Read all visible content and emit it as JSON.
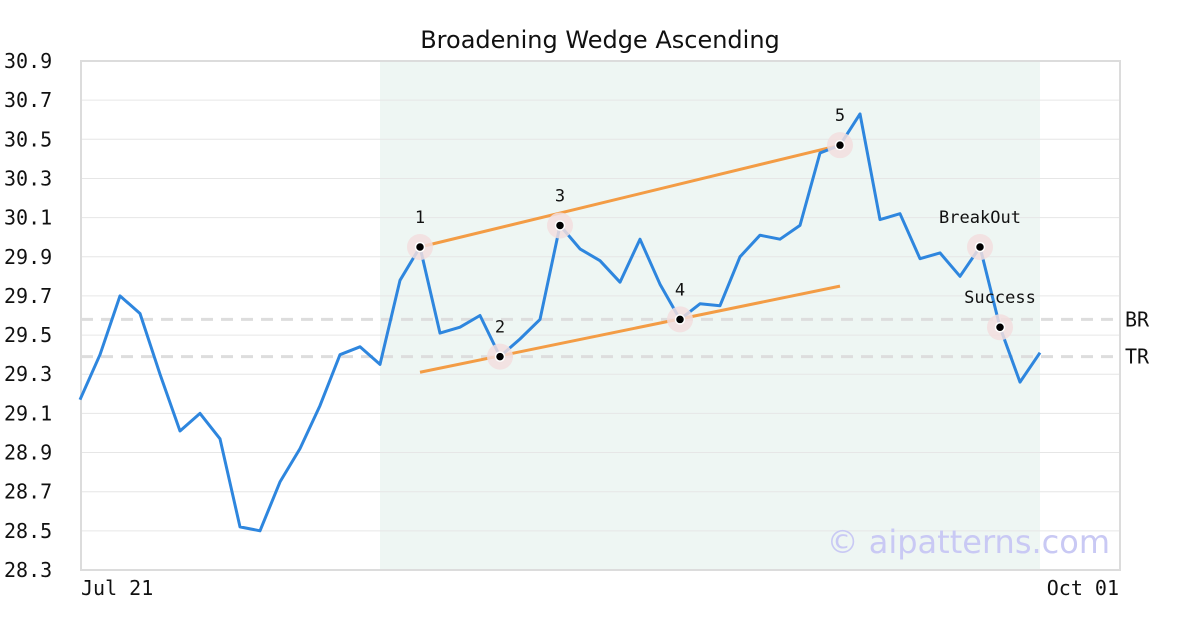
{
  "chart_data": {
    "type": "line",
    "title": "Broadening Wedge Ascending",
    "xlabel": "",
    "ylabel": "",
    "ylim": [
      28.3,
      30.9
    ],
    "yticks": [
      "30.9",
      "30.7",
      "30.5",
      "30.3",
      "30.1",
      "29.9",
      "29.7",
      "29.5",
      "29.3",
      "29.1",
      "28.9",
      "28.7",
      "28.5",
      "28.3"
    ],
    "xtick_labels": [
      "Jul 21",
      "Oct 01"
    ],
    "grid": "horizontal",
    "series": [
      {
        "values": [
          29.17,
          29.4,
          29.7,
          29.61,
          29.3,
          29.01,
          29.1,
          28.97,
          28.52,
          28.5,
          28.75,
          28.92,
          29.14,
          29.4,
          29.44,
          29.35,
          29.78,
          29.95,
          29.51,
          29.54,
          29.6,
          29.39,
          29.48,
          29.58,
          30.06,
          29.94,
          29.88,
          29.77,
          29.99,
          29.76,
          29.58,
          29.66,
          29.65,
          29.9,
          30.01,
          29.99,
          30.06,
          30.43,
          30.47,
          30.63,
          30.09,
          30.12,
          29.89,
          29.92,
          29.8,
          29.95,
          29.54,
          29.26,
          29.41
        ],
        "color": "#2e86de"
      }
    ],
    "pattern_region": {
      "start_index": 15,
      "end_index": 48,
      "color": "#eef6f3"
    },
    "points": [
      {
        "label": "1",
        "index": 17,
        "value": 29.95
      },
      {
        "label": "2",
        "index": 21,
        "value": 29.39
      },
      {
        "label": "3",
        "index": 24,
        "value": 30.06
      },
      {
        "label": "4",
        "index": 30,
        "value": 29.58
      },
      {
        "label": "5",
        "index": 38,
        "value": 30.47
      },
      {
        "label": "BreakOut",
        "index": 45,
        "value": 29.95
      },
      {
        "label": "Success",
        "index": 46,
        "value": 29.54
      }
    ],
    "trendlines": [
      {
        "from": [
          17,
          29.95
        ],
        "to": [
          38,
          30.47
        ],
        "color": "#f39c45"
      },
      {
        "from": [
          17,
          29.31
        ],
        "to": [
          38,
          29.75
        ],
        "color": "#f39c45"
      }
    ],
    "hlines": [
      {
        "label": "BR",
        "value": 29.58
      },
      {
        "label": "TR",
        "value": 29.39
      }
    ],
    "watermark": "© aipatterns.com"
  }
}
